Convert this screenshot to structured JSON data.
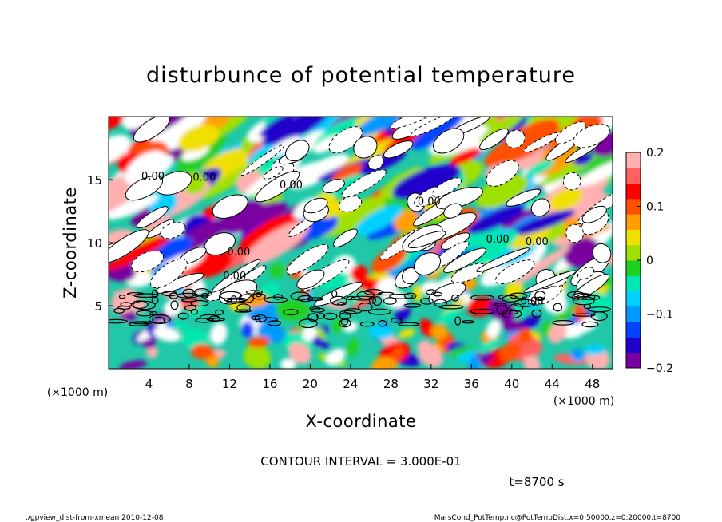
{
  "chart_data": {
    "type": "heatmap",
    "title": "disturbunce of potential temperature",
    "xlabel": "X-coordinate",
    "ylabel": "Z-coordinate",
    "x_unit": "(×1000 m)",
    "y_unit": "(×1000 m)",
    "xlim": [
      0,
      50
    ],
    "ylim": [
      0,
      20
    ],
    "x_ticks": [
      4,
      8,
      12,
      16,
      20,
      24,
      28,
      32,
      36,
      40,
      44,
      48
    ],
    "y_ticks": [
      5,
      10,
      15
    ],
    "colorbar": {
      "ticks": [
        0.2,
        0.1,
        0,
        -0.1,
        -0.2
      ],
      "tick_labels": [
        "0.2",
        "0.1",
        "0",
        "−0.1",
        "−0.2"
      ],
      "range": [
        -0.2,
        0.2
      ],
      "colors": [
        "#7a00a0",
        "#2200cc",
        "#0044ff",
        "#0099ff",
        "#00d0ff",
        "#00e8b0",
        "#20d020",
        "#a0e000",
        "#f0e000",
        "#ffa000",
        "#ff5000",
        "#ff0000",
        "#ff6060",
        "#ffb0b0"
      ]
    },
    "contour_label": "0.00",
    "contour_labels": [
      {
        "x": 4.4,
        "y": 15.0
      },
      {
        "x": 9.5,
        "y": 14.9
      },
      {
        "x": 18.1,
        "y": 14.3
      },
      {
        "x": 31.8,
        "y": 13.0
      },
      {
        "x": 12.9,
        "y": 9.0
      },
      {
        "x": 38.6,
        "y": 10.0
      },
      {
        "x": 42.5,
        "y": 9.8
      },
      {
        "x": 12.5,
        "y": 7.1
      },
      {
        "x": 42.0,
        "y": 5.1
      }
    ],
    "contour_interval_text": "CONTOUR INTERVAL = 3.000E-01",
    "time_text": "t=8700 s"
  },
  "footer": {
    "left": "./gpview_dist-from-xmean   2010-12-08",
    "right": "MarsCond_PotTemp.nc@PotTempDist,x=0:50000,z=0:20000,t=8700"
  }
}
